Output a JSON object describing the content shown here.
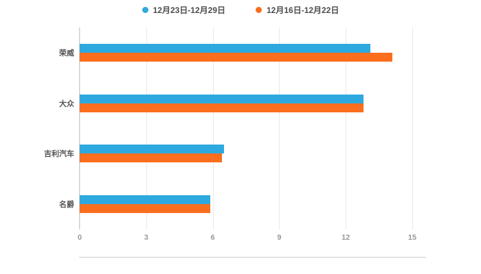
{
  "legend": {
    "items": [
      {
        "label": "12月23日-12月29日",
        "color": "#2EA9DF"
      },
      {
        "label": "12月16日-12月22日",
        "color": "#FA6E1E"
      }
    ]
  },
  "chart_data": {
    "type": "bar",
    "orientation": "horizontal",
    "title": "",
    "xlabel": "",
    "ylabel": "",
    "categories": [
      "荣威",
      "大众",
      "吉利汽车",
      "名爵"
    ],
    "series": [
      {
        "name": "12月23日-12月29日",
        "color": "#2EA9DF",
        "values": [
          13.1,
          12.8,
          6.5,
          5.9
        ]
      },
      {
        "name": "12月16日-12月22日",
        "color": "#FA6E1E",
        "values": [
          14.1,
          12.8,
          6.4,
          5.9
        ]
      }
    ],
    "xlim": [
      0,
      15
    ],
    "xticks": [
      0,
      3,
      6,
      9,
      12,
      15
    ],
    "grid": true,
    "legend_position": "top"
  },
  "colors": {
    "axis": "#cccccc",
    "gridline": "#e8e8e8",
    "tick_label": "#999999",
    "category_label": "#555555",
    "background": "#ffffff"
  }
}
